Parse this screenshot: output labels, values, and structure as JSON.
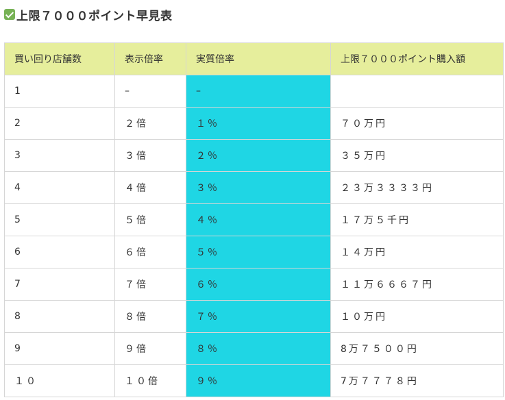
{
  "heading": "上限７０００ポイント早見表",
  "table": {
    "headers": [
      "買い回り店舗数",
      "表示倍率",
      "実質倍率",
      "上限７０００ポイント購入額"
    ],
    "rows": [
      [
        "1",
        "–",
        "–",
        ""
      ],
      [
        "2",
        "２倍",
        "１％",
        "７０万円"
      ],
      [
        "3",
        "３倍",
        "２％",
        "３５万円"
      ],
      [
        "4",
        "４倍",
        "３％",
        "２３万３３３３円"
      ],
      [
        "5",
        "５倍",
        "４％",
        "１７万５千円"
      ],
      [
        "6",
        "６倍",
        "５％",
        "１４万円"
      ],
      [
        "7",
        "７倍",
        "６％",
        "１１万６６６７円"
      ],
      [
        "8",
        "８倍",
        "７％",
        "１０万円"
      ],
      [
        "9",
        "９倍",
        "８％",
        "8万７５００円"
      ],
      [
        "１０",
        "１０倍",
        "９％",
        "7万７７７８円"
      ]
    ]
  },
  "colors": {
    "header_bg": "#e6ee9c",
    "highlight_column_bg": "#1fd6e4",
    "check_icon": "#77b255"
  },
  "icons": {
    "heading_icon": "check-mark-button-icon"
  }
}
